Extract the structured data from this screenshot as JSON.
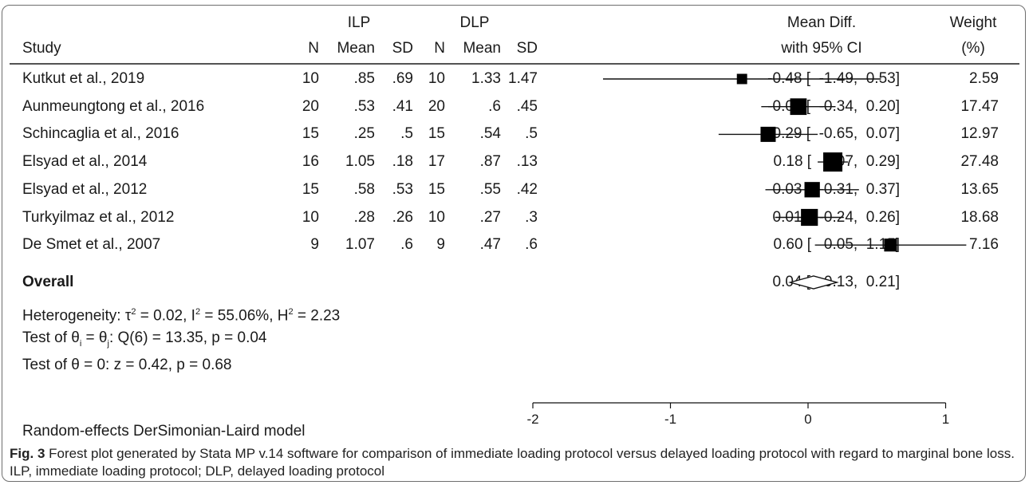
{
  "chart_data": {
    "type": "forest",
    "group_headers": [
      "ILP",
      "DLP"
    ],
    "column_headers": [
      "Study",
      "N",
      "Mean",
      "SD",
      "N",
      "Mean",
      "SD",
      "Mean Diff.",
      "with 95% CI",
      "Weight",
      "(%)"
    ],
    "studies": [
      {
        "study": "Kutkut et al., 2019",
        "n1": "10",
        "mean1": ".85",
        "sd1": ".69",
        "n2": "10",
        "mean2": "1.33",
        "sd2": "1.47",
        "md": -0.48,
        "lo": -1.49,
        "hi": 0.53,
        "ci_text": "-0.48 [  -1.49,  0.53]",
        "weight": 2.59,
        "weight_text": "2.59"
      },
      {
        "study": "Aunmeungtong et al., 2016",
        "n1": "20",
        "mean1": ".53",
        "sd1": ".41",
        "n2": "20",
        "mean2": ".6",
        "sd2": ".45",
        "md": -0.07,
        "lo": -0.34,
        "hi": 0.2,
        "ci_text": "-0.07 [  -0.34,  0.20]",
        "weight": 17.47,
        "weight_text": "17.47"
      },
      {
        "study": "Schincaglia et al., 2016",
        "n1": "15",
        "mean1": ".25",
        "sd1": ".5",
        "n2": "15",
        "mean2": ".54",
        "sd2": ".5",
        "md": -0.29,
        "lo": -0.65,
        "hi": 0.07,
        "ci_text": "-0.29 [  -0.65,  0.07]",
        "weight": 12.97,
        "weight_text": "12.97"
      },
      {
        "study": "Elsyad et al., 2014",
        "n1": "16",
        "mean1": "1.05",
        "sd1": ".18",
        "n2": "17",
        "mean2": ".87",
        "sd2": ".13",
        "md": 0.18,
        "lo": 0.07,
        "hi": 0.29,
        "ci_text": "0.18 [   0.07,  0.29]",
        "weight": 27.48,
        "weight_text": "27.48"
      },
      {
        "study": "Elsyad et al., 2012",
        "n1": "15",
        "mean1": ".58",
        "sd1": ".53",
        "n2": "15",
        "mean2": ".55",
        "sd2": ".42",
        "md": 0.03,
        "lo": -0.31,
        "hi": 0.37,
        "ci_text": "0.03 [  -0.31,  0.37]",
        "weight": 13.65,
        "weight_text": "13.65"
      },
      {
        "study": "Turkyilmaz et al., 2012",
        "n1": "10",
        "mean1": ".28",
        "sd1": ".26",
        "n2": "10",
        "mean2": ".27",
        "sd2": ".3",
        "md": 0.01,
        "lo": -0.24,
        "hi": 0.26,
        "ci_text": "0.01 [  -0.24,  0.26]",
        "weight": 18.68,
        "weight_text": "18.68"
      },
      {
        "study": "De Smet et al., 2007",
        "n1": "9",
        "mean1": "1.07",
        "sd1": ".6",
        "n2": "9",
        "mean2": ".47",
        "sd2": ".6",
        "md": 0.6,
        "lo": 0.05,
        "hi": 1.15,
        "ci_text": "0.60 [   0.05,  1.15]",
        "weight": 7.16,
        "weight_text": "7.16"
      }
    ],
    "overall": {
      "label": "Overall",
      "md": 0.04,
      "lo": -0.13,
      "hi": 0.21,
      "ci_text": "0.04 [  -0.13,  0.21]"
    },
    "heterogeneity": {
      "prefix": "Heterogeneity: τ",
      "tau2": " = 0.02, I",
      "i2": " = 55.06%, H",
      "h2": " = 2.23"
    },
    "test_homogeneity": {
      "a": "Test of θ",
      "sub_i": "i",
      "b": " = θ",
      "sub_j": "j",
      "c": ": Q(6) = 13.35, p = 0.04"
    },
    "test_overall": "Test of θ = 0: z = 0.42, p = 0.68",
    "x_ticks": [
      -2,
      -1,
      0,
      1
    ],
    "xlim": [
      -2,
      1
    ],
    "null_line": 0,
    "model_note": "Random-effects DerSimonian-Laird model"
  },
  "caption": {
    "label": "Fig. 3",
    "text": "  Forest plot generated by Stata MP v.14 software for comparison of immediate loading protocol versus delayed loading protocol with regard to marginal bone loss. ILP, immediate loading protocol; DLP, delayed loading protocol"
  }
}
